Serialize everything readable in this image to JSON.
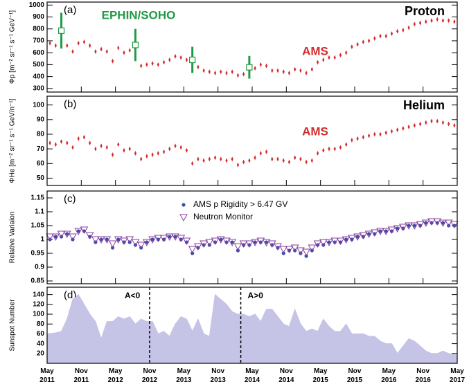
{
  "chart_data": [
    {
      "type": "scatter",
      "label": "(a)",
      "title": "Proton",
      "y_label": "Φp [m⁻² sr⁻¹ s⁻¹ GeV⁻¹]",
      "xlim": [
        "2011-05",
        "2017-05"
      ],
      "ylim": [
        270,
        1025
      ],
      "yticks": [
        300,
        400,
        500,
        600,
        700,
        800,
        900,
        1000
      ],
      "x": [
        "2011-05",
        "2011-06",
        "2011-07",
        "2011-08",
        "2011-09",
        "2011-10",
        "2011-11",
        "2011-12",
        "2012-01",
        "2012-02",
        "2012-03",
        "2012-04",
        "2012-05",
        "2012-06",
        "2012-07",
        "2012-08",
        "2012-09",
        "2012-10",
        "2012-11",
        "2012-12",
        "2013-01",
        "2013-02",
        "2013-03",
        "2013-04",
        "2013-05",
        "2013-06",
        "2013-07",
        "2013-08",
        "2013-09",
        "2013-10",
        "2013-11",
        "2013-12",
        "2014-01",
        "2014-02",
        "2014-03",
        "2014-04",
        "2014-05",
        "2014-06",
        "2014-07",
        "2014-08",
        "2014-09",
        "2014-10",
        "2014-11",
        "2014-12",
        "2015-01",
        "2015-02",
        "2015-03",
        "2015-04",
        "2015-05",
        "2015-06",
        "2015-07",
        "2015-08",
        "2015-09",
        "2015-10",
        "2015-11",
        "2015-12",
        "2016-01",
        "2016-02",
        "2016-03",
        "2016-04",
        "2016-05",
        "2016-06",
        "2016-07",
        "2016-08",
        "2016-09",
        "2016-10",
        "2016-11",
        "2016-12",
        "2017-01",
        "2017-02",
        "2017-03",
        "2017-04"
      ],
      "series": [
        {
          "name": "AMS",
          "color": "#d42a2a",
          "marker": "diamond",
          "values": [
            680,
            660,
            665,
            660,
            610,
            680,
            690,
            660,
            610,
            630,
            610,
            530,
            640,
            600,
            620,
            570,
            490,
            500,
            510,
            500,
            520,
            540,
            570,
            560,
            540,
            450,
            480,
            450,
            440,
            430,
            440,
            430,
            440,
            410,
            420,
            450,
            470,
            500,
            490,
            450,
            450,
            440,
            430,
            460,
            450,
            430,
            460,
            520,
            540,
            560,
            560,
            580,
            600,
            650,
            670,
            690,
            700,
            720,
            740,
            740,
            760,
            780,
            790,
            810,
            840,
            850,
            860,
            870,
            880,
            870,
            870,
            860
          ]
        },
        {
          "name": "EPHIN/SOHO",
          "color": "#1f9a45",
          "marker": "square",
          "x": [
            "2011-07",
            "2012-08",
            "2013-06",
            "2014-04"
          ],
          "values": [
            785,
            665,
            540,
            478
          ],
          "errors": [
            150,
            135,
            110,
            95
          ]
        }
      ]
    },
    {
      "type": "scatter",
      "label": "(b)",
      "title": "Helium",
      "y_label": "ΦHe [m⁻² sr⁻¹ s⁻¹ GeV/n⁻¹]",
      "xlim": [
        "2011-05",
        "2017-05"
      ],
      "ylim": [
        45,
        106
      ],
      "yticks": [
        50,
        60,
        70,
        80,
        90,
        100
      ],
      "x": [
        "2011-05",
        "2011-06",
        "2011-07",
        "2011-08",
        "2011-09",
        "2011-10",
        "2011-11",
        "2011-12",
        "2012-01",
        "2012-02",
        "2012-03",
        "2012-04",
        "2012-05",
        "2012-06",
        "2012-07",
        "2012-08",
        "2012-09",
        "2012-10",
        "2012-11",
        "2012-12",
        "2013-01",
        "2013-02",
        "2013-03",
        "2013-04",
        "2013-05",
        "2013-06",
        "2013-07",
        "2013-08",
        "2013-09",
        "2013-10",
        "2013-11",
        "2013-12",
        "2014-01",
        "2014-02",
        "2014-03",
        "2014-04",
        "2014-05",
        "2014-06",
        "2014-07",
        "2014-08",
        "2014-09",
        "2014-10",
        "2014-11",
        "2014-12",
        "2015-01",
        "2015-02",
        "2015-03",
        "2015-04",
        "2015-05",
        "2015-06",
        "2015-07",
        "2015-08",
        "2015-09",
        "2015-10",
        "2015-11",
        "2015-12",
        "2016-01",
        "2016-02",
        "2016-03",
        "2016-04",
        "2016-05",
        "2016-06",
        "2016-07",
        "2016-08",
        "2016-09",
        "2016-10",
        "2016-11",
        "2016-12",
        "2017-01",
        "2017-02",
        "2017-03",
        "2017-04"
      ],
      "series": [
        {
          "name": "AMS",
          "color": "#d42a2a",
          "marker": "diamond",
          "values": [
            74,
            73,
            75,
            74,
            71,
            77,
            78,
            74,
            70,
            72,
            71,
            66,
            73,
            69,
            70,
            67,
            63,
            65,
            66,
            67,
            68,
            70,
            72,
            71,
            69,
            60,
            63,
            62,
            63,
            64,
            63,
            62,
            63,
            59,
            61,
            62,
            64,
            67,
            68,
            63,
            63,
            62,
            61,
            64,
            63,
            61,
            62,
            67,
            69,
            70,
            70,
            71,
            73,
            76,
            77,
            78,
            79,
            80,
            80,
            81,
            82,
            83,
            84,
            85,
            86,
            87,
            88,
            89,
            89,
            88,
            87,
            86
          ]
        }
      ]
    },
    {
      "type": "scatter",
      "label": "(c)",
      "y_label": "Relative Variaion",
      "legend": "top-center",
      "xlim": [
        "2011-05",
        "2017-05"
      ],
      "ylim": [
        0.84,
        1.175
      ],
      "yticks": [
        0.85,
        0.9,
        0.95,
        1,
        1.05,
        1.1,
        1.15
      ],
      "x": [
        "2011-05",
        "2011-06",
        "2011-07",
        "2011-08",
        "2011-09",
        "2011-10",
        "2011-11",
        "2011-12",
        "2012-01",
        "2012-02",
        "2012-03",
        "2012-04",
        "2012-05",
        "2012-06",
        "2012-07",
        "2012-08",
        "2012-09",
        "2012-10",
        "2012-11",
        "2012-12",
        "2013-01",
        "2013-02",
        "2013-03",
        "2013-04",
        "2013-05",
        "2013-06",
        "2013-07",
        "2013-08",
        "2013-09",
        "2013-10",
        "2013-11",
        "2013-12",
        "2014-01",
        "2014-02",
        "2014-03",
        "2014-04",
        "2014-05",
        "2014-06",
        "2014-07",
        "2014-08",
        "2014-09",
        "2014-10",
        "2014-11",
        "2014-12",
        "2015-01",
        "2015-02",
        "2015-03",
        "2015-04",
        "2015-05",
        "2015-06",
        "2015-07",
        "2015-08",
        "2015-09",
        "2015-10",
        "2015-11",
        "2015-12",
        "2016-01",
        "2016-02",
        "2016-03",
        "2016-04",
        "2016-05",
        "2016-06",
        "2016-07",
        "2016-08",
        "2016-09",
        "2016-10",
        "2016-11",
        "2016-12",
        "2017-01",
        "2017-02",
        "2017-03",
        "2017-04"
      ],
      "series": [
        {
          "name": "AMS p Rigidity > 6.47 GV",
          "color": "#3a4fa8",
          "marker": "circle",
          "values": [
            1.0,
            1.01,
            1.01,
            1.02,
            1.0,
            1.03,
            1.03,
            1.01,
            0.99,
            1.0,
            1.0,
            0.97,
            1.0,
            0.99,
            0.99,
            0.98,
            0.97,
            0.99,
            1.0,
            1.0,
            1.0,
            1.01,
            1.01,
            1.0,
            0.99,
            0.95,
            0.97,
            0.98,
            0.98,
            0.99,
            1.0,
            0.99,
            0.99,
            0.96,
            0.98,
            0.98,
            0.99,
            0.99,
            0.99,
            0.98,
            0.97,
            0.95,
            0.96,
            0.96,
            0.95,
            0.94,
            0.96,
            0.98,
            0.98,
            0.99,
            0.99,
            0.99,
            1.0,
            1.0,
            1.01,
            1.01,
            1.02,
            1.02,
            1.03,
            1.03,
            1.03,
            1.04,
            1.04,
            1.05,
            1.05,
            1.05,
            1.06,
            1.06,
            1.06,
            1.06,
            1.05,
            1.05
          ]
        },
        {
          "name": "Neutron Monitor",
          "color": "#8a3d9e",
          "marker": "triangle",
          "values": [
            1.01,
            1.01,
            1.02,
            1.02,
            1.01,
            1.03,
            1.035,
            1.015,
            1.0,
            1.0,
            1.0,
            0.985,
            1.0,
            0.995,
            1.0,
            0.99,
            0.98,
            0.99,
            1.0,
            1.005,
            1.005,
            1.01,
            1.01,
            1.005,
            0.995,
            0.965,
            0.975,
            0.985,
            0.99,
            0.995,
            1.0,
            0.995,
            0.99,
            0.975,
            0.985,
            0.985,
            0.99,
            0.995,
            0.99,
            0.985,
            0.975,
            0.965,
            0.965,
            0.97,
            0.96,
            0.955,
            0.97,
            0.985,
            0.99,
            0.99,
            0.995,
            0.995,
            1.0,
            1.005,
            1.01,
            1.015,
            1.02,
            1.025,
            1.03,
            1.03,
            1.035,
            1.04,
            1.045,
            1.05,
            1.05,
            1.055,
            1.06,
            1.065,
            1.065,
            1.06,
            1.06,
            1.055
          ]
        }
      ]
    },
    {
      "type": "area",
      "label": "(d)",
      "y_label": "Sunspot Number",
      "color": "#c5c3e6",
      "xlim": [
        "2011-05",
        "2017-05"
      ],
      "ylim": [
        0,
        155
      ],
      "yticks": [
        20,
        40,
        60,
        80,
        100,
        120,
        140
      ],
      "xticks": [
        {
          "value": "2011-05",
          "label": "May 2011"
        },
        {
          "value": "2011-11",
          "label": "Nov 2011"
        },
        {
          "value": "2012-05",
          "label": "May 2012"
        },
        {
          "value": "2012-11",
          "label": "Nov 2012"
        },
        {
          "value": "2013-05",
          "label": "May 2013"
        },
        {
          "value": "2013-11",
          "label": "Nov 2013"
        },
        {
          "value": "2014-05",
          "label": "May 2014"
        },
        {
          "value": "2014-11",
          "label": "Nov 2014"
        },
        {
          "value": "2015-05",
          "label": "May 2015"
        },
        {
          "value": "2015-11",
          "label": "Nov 2015"
        },
        {
          "value": "2016-05",
          "label": "May 2016"
        },
        {
          "value": "2016-11",
          "label": "Nov 2016"
        },
        {
          "value": "2017-05",
          "label": "May 2017"
        }
      ],
      "annotations": [
        {
          "text": "A<0",
          "x": "2012-11"
        },
        {
          "text": "A>0",
          "x": "2014-03"
        }
      ],
      "x": [
        "2011-05",
        "2011-06",
        "2011-07",
        "2011-08",
        "2011-09",
        "2011-10",
        "2011-11",
        "2011-12",
        "2012-01",
        "2012-02",
        "2012-03",
        "2012-04",
        "2012-05",
        "2012-06",
        "2012-07",
        "2012-08",
        "2012-09",
        "2012-10",
        "2012-11",
        "2012-12",
        "2013-01",
        "2013-02",
        "2013-03",
        "2013-04",
        "2013-05",
        "2013-06",
        "2013-07",
        "2013-08",
        "2013-09",
        "2013-10",
        "2013-11",
        "2013-12",
        "2014-01",
        "2014-02",
        "2014-03",
        "2014-04",
        "2014-05",
        "2014-06",
        "2014-07",
        "2014-08",
        "2014-09",
        "2014-10",
        "2014-11",
        "2014-12",
        "2015-01",
        "2015-02",
        "2015-03",
        "2015-04",
        "2015-05",
        "2015-06",
        "2015-07",
        "2015-08",
        "2015-09",
        "2015-10",
        "2015-11",
        "2015-12",
        "2016-01",
        "2016-02",
        "2016-03",
        "2016-04",
        "2016-05",
        "2016-06",
        "2016-07",
        "2016-08",
        "2016-09",
        "2016-10",
        "2016-11",
        "2016-12",
        "2017-01",
        "2017-02",
        "2017-03",
        "2017-04"
      ],
      "values": [
        60,
        62,
        65,
        90,
        130,
        140,
        120,
        100,
        85,
        50,
        85,
        85,
        95,
        90,
        95,
        80,
        90,
        85,
        85,
        60,
        65,
        55,
        80,
        95,
        90,
        65,
        90,
        60,
        55,
        140,
        130,
        120,
        105,
        100,
        100,
        95,
        100,
        85,
        110,
        110,
        95,
        80,
        75,
        110,
        80,
        65,
        70,
        65,
        90,
        75,
        65,
        65,
        80,
        60,
        60,
        60,
        55,
        55,
        45,
        40,
        40,
        20,
        35,
        50,
        45,
        35,
        25,
        20,
        20,
        25,
        20,
        18
      ]
    }
  ]
}
